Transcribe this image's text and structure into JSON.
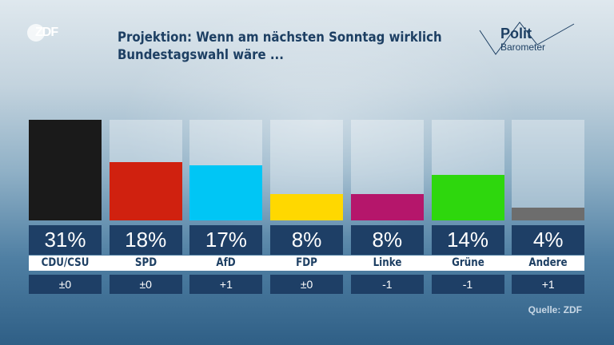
{
  "header": {
    "brand": "ZDF",
    "title_line1": "Projektion: Wenn am nächsten Sonntag wirklich",
    "title_line2": "Bundestagswahl wäre ...",
    "logo_line1": "Polit",
    "logo_line2": "Barometer"
  },
  "source": "Quelle: ZDF",
  "chart_data": {
    "type": "bar",
    "title": "Projektion: Wenn am nächsten Sonntag wirklich Bundestagswahl wäre ...",
    "categories": [
      "CDU/CSU",
      "SPD",
      "AfD",
      "FDP",
      "Linke",
      "Grüne",
      "Andere"
    ],
    "values": [
      31,
      18,
      17,
      8,
      8,
      14,
      4
    ],
    "value_labels": [
      "31%",
      "18%",
      "17%",
      "8%",
      "8%",
      "14%",
      "4%"
    ],
    "changes": [
      "±0",
      "±0",
      "+1",
      "±0",
      "-1",
      "-1",
      "+1"
    ],
    "colors": [
      "#1a1a1a",
      "#d0210f",
      "#00c6f5",
      "#ffd800",
      "#b5166b",
      "#2ed70d",
      "#6d6d6d"
    ],
    "ylim": [
      0,
      31
    ],
    "unit": "%"
  }
}
